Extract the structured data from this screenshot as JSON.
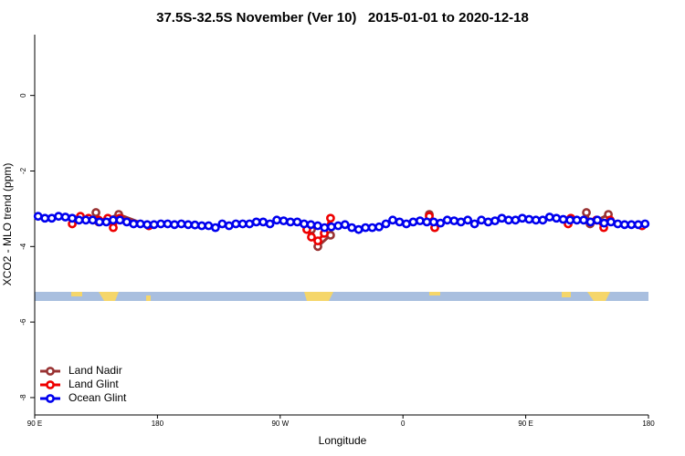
{
  "chart_data": {
    "type": "line",
    "title": "37.5S-32.5S November (Ver 10)   2015-01-01 to 2020-12-18",
    "x_label": "Longitude",
    "y_label": "XCO2 - MLO trend (ppm)",
    "xlim": [
      90,
      540
    ],
    "ylim": [
      -8.46,
      1.61
    ],
    "xticks": [
      {
        "value": 90,
        "label": "90 E"
      },
      180,
      {
        "value": 270,
        "label": "90 W"
      },
      {
        "value": 360,
        "label": "0"
      },
      {
        "value": 450,
        "label": "90 E"
      },
      {
        "value": 540,
        "label": "180"
      }
    ],
    "yticks": [
      0,
      -2,
      -4,
      -6,
      -8
    ],
    "legend": "bottom-left",
    "series": [
      {
        "name": "Land Nadir",
        "color": "#993333",
        "x": [
          134.9,
          136.9,
          151.6,
          173.7,
          null,
          292.9,
          297.6,
          306.9,
          null,
          379.3,
          383.3,
          null,
          494.5,
          497.2,
          510.6,
          null,
          535.3
        ],
        "values": [
          -3.1,
          -3.35,
          -3.15,
          -3.45,
          null,
          -3.55,
          -4.0,
          -3.7,
          null,
          -3.15,
          -3.5,
          null,
          -3.1,
          -3.4,
          -3.15,
          null,
          -3.45
        ]
      },
      {
        "name": "Land Glint",
        "color": "#ee0000",
        "x": [
          117.5,
          123.5,
          129.5,
          136.9,
          143.6,
          147.6,
          152.3,
          173.7,
          null,
          289.5,
          292.9,
          297.6,
          302.3,
          306.9,
          null,
          379.3,
          383.3,
          null,
          481.1,
          483.1,
          501.8,
          507.2,
          511.9,
          null,
          535.3
        ],
        "values": [
          -3.4,
          -3.2,
          -3.25,
          -3.3,
          -3.25,
          -3.5,
          -3.25,
          -3.45,
          null,
          -3.55,
          -3.75,
          -3.85,
          -3.65,
          -3.25,
          null,
          -3.2,
          -3.5,
          null,
          -3.4,
          -3.25,
          -3.3,
          -3.5,
          -3.3,
          null,
          -3.45
        ]
      },
      {
        "name": "Ocean Glint",
        "color": "#0000ee",
        "x": [
          92.5,
          97.5,
          102.5,
          107.5,
          112.5,
          117.5,
          122.5,
          127.5,
          132.5,
          137.5,
          142.5,
          147.5,
          152.5,
          157.5,
          162.5,
          167.5,
          172.5,
          177.5,
          182.5,
          187.5,
          192.5,
          197.5,
          202.5,
          207.5,
          212.5,
          217.5,
          222.5,
          227.5,
          232.5,
          237.5,
          242.5,
          247.5,
          252.5,
          257.5,
          262.5,
          267.5,
          272.5,
          277.5,
          282.5,
          287.5,
          292.5,
          297.5,
          302.5,
          307.5,
          312.5,
          317.5,
          322.5,
          327.5,
          332.5,
          337.5,
          342.5,
          347.5,
          352.5,
          357.5,
          362.5,
          367.5,
          372.5,
          377.5,
          382.5,
          387.5,
          392.5,
          397.5,
          402.5,
          407.5,
          412.5,
          417.5,
          422.5,
          427.5,
          432.5,
          437.5,
          442.5,
          447.5,
          452.5,
          457.5,
          462.5,
          467.5,
          472.5,
          477.5,
          482.5,
          487.5,
          492.5,
          497.5,
          502.5,
          507.5,
          512.5,
          517.5,
          522.5,
          527.5,
          532.5,
          537.5
        ],
        "values": [
          -3.2,
          -3.25,
          -3.25,
          -3.2,
          -3.22,
          -3.25,
          -3.3,
          -3.3,
          -3.3,
          -3.35,
          -3.35,
          -3.3,
          -3.3,
          -3.35,
          -3.4,
          -3.4,
          -3.42,
          -3.42,
          -3.4,
          -3.4,
          -3.42,
          -3.4,
          -3.42,
          -3.43,
          -3.45,
          -3.45,
          -3.5,
          -3.4,
          -3.45,
          -3.4,
          -3.4,
          -3.4,
          -3.35,
          -3.35,
          -3.4,
          -3.3,
          -3.32,
          -3.35,
          -3.35,
          -3.4,
          -3.42,
          -3.45,
          -3.5,
          -3.48,
          -3.45,
          -3.42,
          -3.5,
          -3.55,
          -3.5,
          -3.5,
          -3.48,
          -3.4,
          -3.3,
          -3.35,
          -3.4,
          -3.35,
          -3.32,
          -3.35,
          -3.35,
          -3.38,
          -3.3,
          -3.32,
          -3.35,
          -3.3,
          -3.4,
          -3.3,
          -3.35,
          -3.32,
          -3.25,
          -3.3,
          -3.3,
          -3.25,
          -3.28,
          -3.3,
          -3.3,
          -3.22,
          -3.25,
          -3.28,
          -3.3,
          -3.3,
          -3.3,
          -3.35,
          -3.3,
          -3.38,
          -3.35,
          -3.4,
          -3.42,
          -3.42,
          -3.42,
          -3.4
        ]
      }
    ]
  }
}
